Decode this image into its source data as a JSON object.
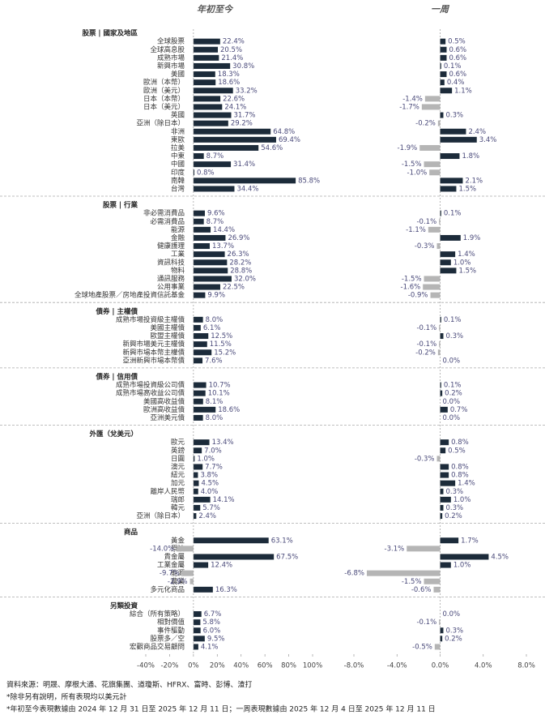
{
  "chart_data": {
    "type": "paired-hbar",
    "panels": [
      {
        "name": "年初至今",
        "xlim": [
          -40,
          100
        ],
        "xticks": [
          {
            "value": -40,
            "label": "-40%"
          },
          {
            "value": -20,
            "label": "-20%"
          },
          {
            "value": 0,
            "label": "0%"
          },
          {
            "value": 20,
            "label": "20%"
          },
          {
            "value": 40,
            "label": "40%"
          },
          {
            "value": 60,
            "label": "60%"
          },
          {
            "value": 80,
            "label": "80%"
          },
          {
            "value": 100,
            "label": "100%"
          }
        ]
      },
      {
        "name": "一周",
        "xlim": [
          -8,
          8
        ],
        "xticks": [
          {
            "value": -8,
            "label": "-8.0%"
          },
          {
            "value": -4,
            "label": "-4.0%"
          },
          {
            "value": 0,
            "label": "0.0%"
          },
          {
            "value": 4,
            "label": "4.0%"
          },
          {
            "value": 8,
            "label": "8.0%"
          }
        ]
      }
    ],
    "positive_color": "#1c2b3a",
    "negative_color": "#b5b5b5",
    "sections": [
      {
        "title": "股票 | 國家及地區",
        "categories": [
          "全球股票",
          "全球高息股",
          "成熟市場",
          "新興市場",
          "美國",
          "歐洲（本幣）",
          "歐洲（美元）",
          "日本（本幣）",
          "日本（美元）",
          "英國",
          "亞洲（除日本）",
          "非洲",
          "東歐",
          "拉美",
          "中東",
          "中國",
          "印度",
          "南韓",
          "台灣"
        ],
        "series": [
          {
            "values": [
              22.4,
              20.5,
              21.4,
              30.8,
              18.3,
              18.6,
              33.2,
              22.6,
              24.1,
              31.7,
              29.2,
              64.8,
              69.4,
              54.6,
              8.7,
              31.4,
              0.8,
              85.8,
              34.4
            ],
            "value_labels": [
              "22.4%",
              "20.5%",
              "21.4%",
              "30.8%",
              "18.3%",
              "18.6%",
              "33.2%",
              "22.6%",
              "24.1%",
              "31.7%",
              "29.2%",
              "64.8%",
              "69.4%",
              "54.6%",
              "8.7%",
              "31.4%",
              "0.8%",
              "85.8%",
              "34.4%"
            ]
          },
          {
            "values": [
              0.5,
              0.6,
              0.6,
              0.1,
              0.6,
              0.4,
              1.1,
              -1.4,
              -1.7,
              0.3,
              -0.2,
              2.4,
              3.4,
              -1.9,
              1.8,
              -1.5,
              -1.0,
              2.1,
              1.5
            ],
            "value_labels": [
              "0.5%",
              "0.6%",
              "0.6%",
              "0.1%",
              "0.6%",
              "0.4%",
              "1.1%",
              "-1.4%",
              "-1.7%",
              "0.3%",
              "-0.2%",
              "2.4%",
              "3.4%",
              "-1.9%",
              "1.8%",
              "-1.5%",
              "-1.0%",
              "2.1%",
              "1.5%"
            ]
          }
        ]
      },
      {
        "title": "股票 | 行業",
        "categories": [
          "非必需消費品",
          "必需消費品",
          "能源",
          "金融",
          "健康護理",
          "工業",
          "資訊科技",
          "物料",
          "通訊服務",
          "公用事業",
          "全球地產股票／房地產投資信託基金"
        ],
        "series": [
          {
            "values": [
              9.6,
              8.7,
              14.4,
              26.9,
              13.7,
              26.3,
              28.2,
              28.8,
              32.0,
              22.5,
              9.9
            ],
            "value_labels": [
              "9.6%",
              "8.7%",
              "14.4%",
              "26.9%",
              "13.7%",
              "26.3%",
              "28.2%",
              "28.8%",
              "32.0%",
              "22.5%",
              "9.9%"
            ]
          },
          {
            "values": [
              0.1,
              -0.1,
              -1.1,
              1.9,
              -0.3,
              1.4,
              1.0,
              1.5,
              -1.5,
              -1.6,
              -0.9
            ],
            "value_labels": [
              "0.1%",
              "-0.1%",
              "-1.1%",
              "1.9%",
              "-0.3%",
              "1.4%",
              "1.0%",
              "1.5%",
              "-1.5%",
              "-1.6%",
              "-0.9%"
            ]
          }
        ]
      },
      {
        "title": "債券 | 主權債",
        "categories": [
          "成熟市場投資級主權債",
          "美國主權債",
          "歐盟主權債",
          "新興市場美元主權債",
          "新興市場本幣主權債",
          "亞洲新興市場本幣債"
        ],
        "series": [
          {
            "values": [
              8.0,
              6.1,
              12.5,
              11.5,
              15.2,
              7.6
            ],
            "value_labels": [
              "8.0%",
              "6.1%",
              "12.5%",
              "11.5%",
              "15.2%",
              "7.6%"
            ]
          },
          {
            "values": [
              0.1,
              -0.1,
              0.3,
              -0.1,
              -0.2,
              0.0
            ],
            "value_labels": [
              "0.1%",
              "-0.1%",
              "0.3%",
              "-0.1%",
              "-0.2%",
              "0.0%"
            ]
          }
        ]
      },
      {
        "title": "債券 | 信用債",
        "categories": [
          "成熟市場投資級公司債",
          "成熟市場高收益公司債",
          "美國高收益債",
          "歐洲高收益債",
          "亞洲美元債"
        ],
        "series": [
          {
            "values": [
              10.7,
              10.1,
              8.1,
              18.6,
              8.0
            ],
            "value_labels": [
              "10.7%",
              "10.1%",
              "8.1%",
              "18.6%",
              "8.0%"
            ]
          },
          {
            "values": [
              0.1,
              0.2,
              0.0,
              0.7,
              0.0
            ],
            "value_labels": [
              "0.1%",
              "0.2%",
              "0.0%",
              "0.7%",
              "0.0%"
            ]
          }
        ]
      },
      {
        "title": "外匯（兌美元）",
        "categories": [
          "歐元",
          "英鎊",
          "日圓",
          "澳元",
          "紐元",
          "加元",
          "離岸人民幣",
          "瑞郎",
          "韓元",
          "亞洲（除日本）"
        ],
        "series": [
          {
            "values": [
              13.4,
              7.0,
              1.0,
              7.7,
              3.8,
              4.5,
              4.0,
              14.1,
              5.7,
              2.4
            ],
            "value_labels": [
              "13.4%",
              "7.0%",
              "1.0%",
              "7.7%",
              "3.8%",
              "4.5%",
              "4.0%",
              "14.1%",
              "5.7%",
              "2.4%"
            ]
          },
          {
            "values": [
              0.8,
              0.5,
              -0.3,
              0.8,
              0.8,
              1.4,
              0.3,
              1.0,
              0.3,
              0.2
            ],
            "value_labels": [
              "0.8%",
              "0.5%",
              "-0.3%",
              "0.8%",
              "0.8%",
              "1.4%",
              "0.3%",
              "1.0%",
              "0.3%",
              "0.2%"
            ]
          }
        ]
      },
      {
        "title": "商品",
        "categories": [
          "黃金",
          "原油",
          "貴金屬",
          "工業金屬",
          "能源",
          "農業",
          "多元化商品"
        ],
        "series": [
          {
            "values": [
              63.1,
              -14.0,
              67.5,
              12.4,
              -9.7,
              -2.9,
              16.3
            ],
            "value_labels": [
              "63.1%",
              "-14.0%",
              "67.5%",
              "12.4%",
              "-9.7%",
              "-2.9%",
              "16.3%"
            ]
          },
          {
            "values": [
              1.7,
              -3.1,
              4.5,
              1.0,
              -6.8,
              -1.5,
              -0.6
            ],
            "value_labels": [
              "1.7%",
              "-3.1%",
              "4.5%",
              "1.0%",
              "-6.8%",
              "-1.5%",
              "-0.6%"
            ]
          }
        ]
      },
      {
        "title": "另類投資",
        "categories": [
          "綜合（所有策略）",
          "相對價值",
          "事件驅動",
          "股票多／空",
          "宏觀商品交易顧問"
        ],
        "series": [
          {
            "values": [
              6.7,
              5.8,
              6.0,
              9.5,
              4.1
            ],
            "value_labels": [
              "6.7%",
              "5.8%",
              "6.0%",
              "9.5%",
              "4.1%"
            ]
          },
          {
            "values": [
              0.0,
              -0.1,
              0.3,
              0.2,
              -0.5
            ],
            "value_labels": [
              "0.0%",
              "-0.1%",
              "0.3%",
              "0.2%",
              "-0.5%"
            ]
          }
        ]
      }
    ]
  },
  "footnotes": [
    "資料來源：明晟、摩根大通、花旗集團、道瓊斯、HFRX、富時、彭博、渣打",
    "*除非另有說明，所有表現均以美元計",
    "*年初至今表現數據由 2024 年 12 月 31 日至 2025 年 12 月 11 日；一周表現數據由 2025 年 12 月 4 日至 2025 年 12 月 11 日"
  ]
}
